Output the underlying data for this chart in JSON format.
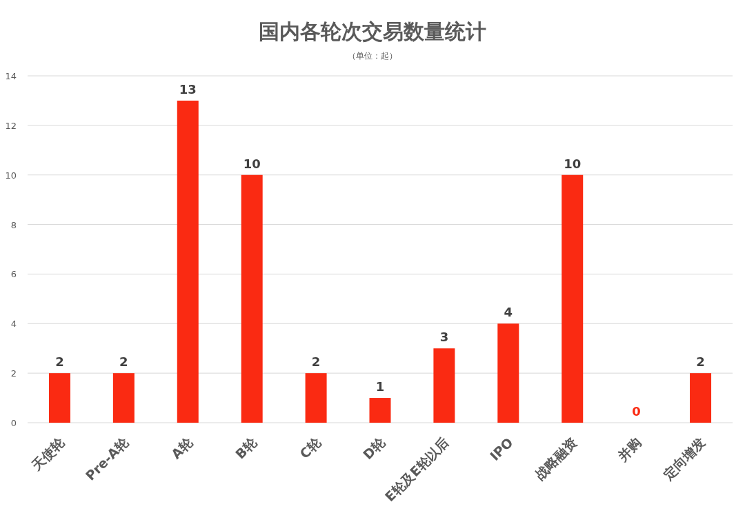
{
  "chart_data": {
    "type": "bar",
    "title": "国内各轮次交易数量统计",
    "subtitle": "（单位：起）",
    "categories": [
      "天使轮",
      "Pre-A轮",
      "A轮",
      "B轮",
      "C轮",
      "D轮",
      "E轮及E轮以后",
      "IPO",
      "战略融资",
      "并购",
      "定向增发"
    ],
    "values": [
      2,
      2,
      13,
      10,
      2,
      1,
      3,
      4,
      10,
      0,
      2
    ],
    "color": "#fa2a12",
    "ylim": [
      0,
      14
    ],
    "yticks": [
      0,
      2,
      4,
      6,
      8,
      10,
      12,
      14
    ],
    "grid": "y",
    "data_labels": true
  }
}
